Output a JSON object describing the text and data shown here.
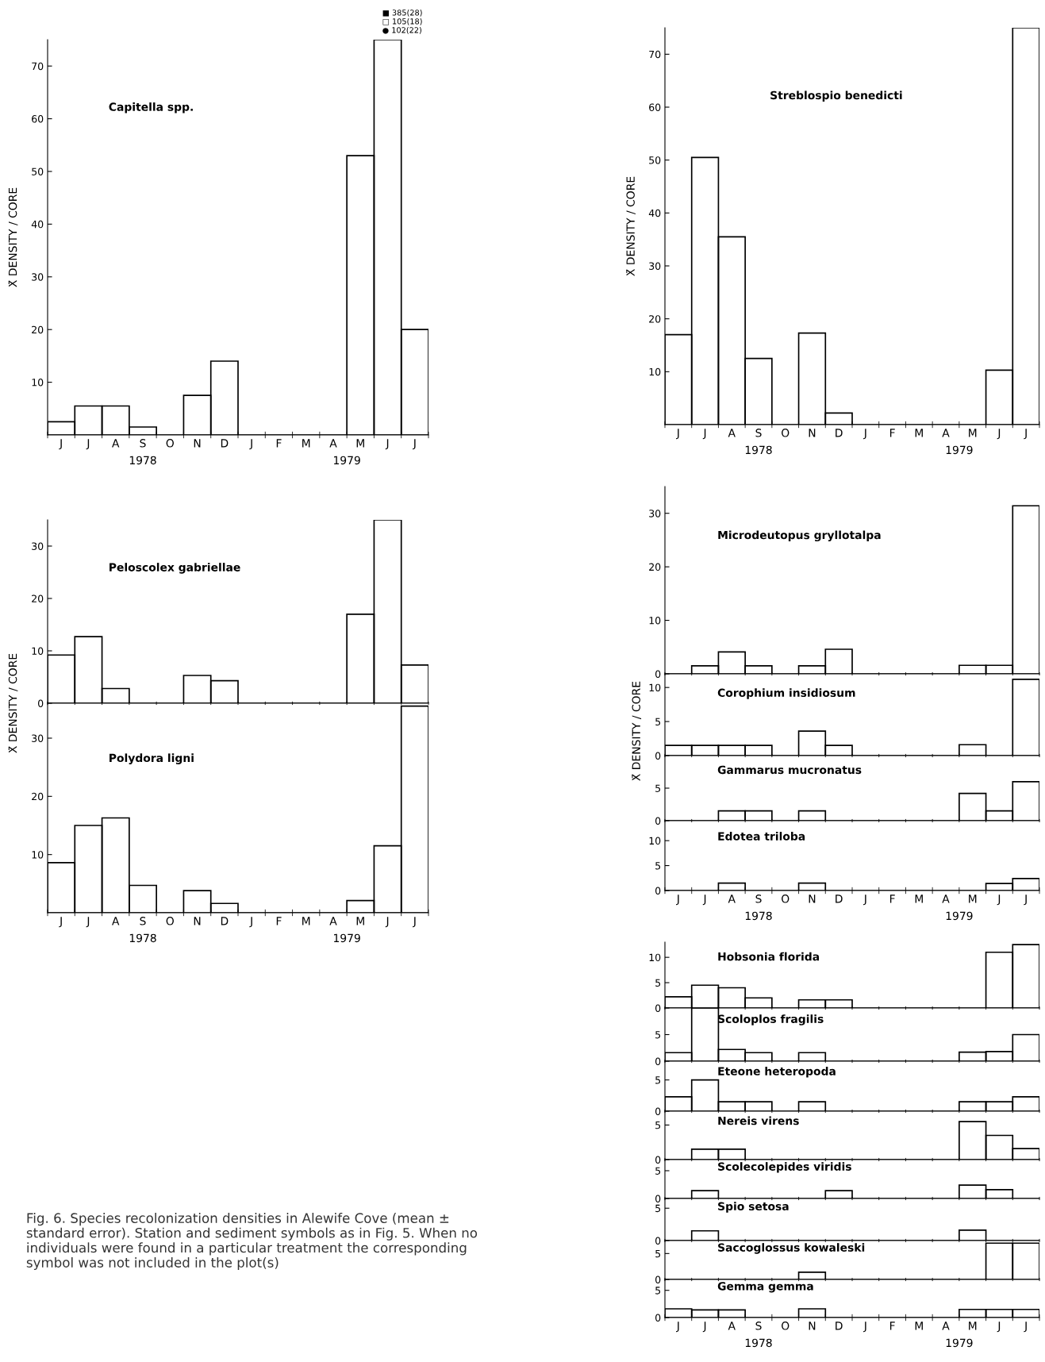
{
  "chart_data": [
    {
      "type": "bar",
      "title": "Capitella spp.",
      "ylabel": "X̄ DENSITY / CORE",
      "categories": [
        "J",
        "J",
        "A",
        "S",
        "O",
        "N",
        "D",
        "J",
        "F",
        "M",
        "A",
        "M",
        "J",
        "J"
      ],
      "values": [
        2.5,
        5.5,
        5.5,
        1.5,
        0,
        7.5,
        14,
        0,
        0,
        0,
        0,
        53,
        75,
        20
      ],
      "color": "#000000",
      "ylim": [
        0,
        75
      ],
      "yticks": [
        10,
        20,
        30,
        40,
        50,
        60,
        70
      ],
      "annotations": [
        "1978",
        "1979",
        "■ 385(28)",
        "□ 105(18)",
        "● 102(22)"
      ]
    },
    {
      "type": "bar",
      "title": "Streblospio benedicti",
      "ylabel": "X̄ DENSITY / CORE",
      "categories": [
        "J",
        "J",
        "A",
        "S",
        "O",
        "N",
        "D",
        "J",
        "F",
        "M",
        "A",
        "M",
        "J",
        "J"
      ],
      "values": [
        17,
        50.5,
        35.5,
        12.5,
        0,
        17.3,
        2.2,
        0,
        0,
        0,
        0,
        0,
        10.3,
        75
      ],
      "color": "#000000",
      "ylim": [
        0,
        75
      ],
      "yticks": [
        10,
        20,
        30,
        40,
        50,
        60,
        70
      ],
      "annotations": [
        "1978",
        "1979"
      ]
    },
    {
      "type": "bar",
      "title": "Peloscolex gabriellae",
      "categories": [
        null,
        null,
        null,
        null,
        null,
        null,
        null,
        null,
        null,
        null,
        null,
        null,
        null,
        null
      ],
      "values": [
        9.2,
        12.7,
        2.8,
        0,
        0,
        5.3,
        4.3,
        0,
        0,
        0,
        0,
        17,
        35,
        7.3
      ],
      "color": "#000000",
      "ylim": [
        0,
        35
      ],
      "yticks": [
        0,
        10,
        20,
        30
      ],
      "tick_labels": "y"
    },
    {
      "type": "bar",
      "title": "Polydora ligni",
      "ylabel": "X̄ DENSITY / CORE",
      "categories": [
        "J",
        "J",
        "A",
        "S",
        "O",
        "N",
        "D",
        "J",
        "F",
        "M",
        "A",
        "M",
        "J",
        "J"
      ],
      "values": [
        8.6,
        15,
        16.3,
        4.7,
        0,
        3.8,
        1.6,
        0,
        0,
        0,
        0,
        2.1,
        11.5,
        35.5
      ],
      "color": "#000000",
      "ylim": [
        0,
        36
      ],
      "yticks": [
        10,
        20,
        30
      ],
      "annotations": [
        "1978",
        "1979",
        "Fig. 6. Species recolonization densities in Alewife Cove (mean ± standard error). Station and sediment symbols as in Fig. 5. When no individuals were found in a particular treatment the corresponding symbol was not included in the plot(s)"
      ]
    },
    {
      "type": "bar",
      "title": "Microdeutopus gryllotalpa",
      "categories": [
        null,
        null,
        null,
        null,
        null,
        null,
        null,
        null,
        null,
        null,
        null,
        null,
        null,
        null
      ],
      "values": [
        0,
        1.5,
        4.1,
        1.5,
        0,
        1.5,
        4.6,
        0,
        0,
        0,
        0,
        1.6,
        1.6,
        31.4
      ],
      "color": "#000000",
      "ylim": [
        0,
        35
      ],
      "yticks": [
        0,
        10,
        20,
        30
      ],
      "tick_labels": "y"
    },
    {
      "type": "bar",
      "title": "Corophium insidiosum",
      "ylabel": "X̄ DENSITY / CORE",
      "categories": [
        null,
        null,
        null,
        null,
        null,
        null,
        null,
        null,
        null,
        null,
        null,
        null,
        null,
        null
      ],
      "values": [
        1.5,
        1.5,
        1.5,
        1.5,
        0,
        3.6,
        1.5,
        0,
        0,
        0,
        0,
        1.6,
        0,
        11.2
      ],
      "color": "#000000",
      "ylim": [
        0,
        12
      ],
      "yticks": [
        0,
        5,
        10
      ],
      "tick_labels": "y"
    },
    {
      "type": "bar",
      "title": "Gammarus mucronatus",
      "categories": [
        null,
        null,
        null,
        null,
        null,
        null,
        null,
        null,
        null,
        null,
        null,
        null,
        null,
        null
      ],
      "values": [
        0,
        0,
        1.5,
        1.5,
        0,
        1.5,
        0,
        0,
        0,
        0,
        0,
        4.2,
        1.5,
        6
      ],
      "color": "#000000",
      "ylim": [
        0,
        10
      ],
      "yticks": [
        0,
        5
      ],
      "tick_labels": "y"
    },
    {
      "type": "bar",
      "title": "Edotea triloba",
      "categories": [
        "J",
        "J",
        "A",
        "S",
        "O",
        "N",
        "D",
        "J",
        "F",
        "M",
        "A",
        "M",
        "J",
        "J"
      ],
      "values": [
        0,
        0,
        1.5,
        0,
        0,
        1.5,
        0,
        0,
        0,
        0,
        0,
        0,
        1.4,
        2.4
      ],
      "color": "#000000",
      "ylim": [
        0,
        14
      ],
      "yticks": [
        0,
        5,
        10
      ],
      "annotations": [
        "1978",
        "1979"
      ]
    },
    {
      "type": "bar",
      "title": "Hobsonia florida",
      "categories": [
        null,
        null,
        null,
        null,
        null,
        null,
        null,
        null,
        null,
        null,
        null,
        null,
        null,
        null
      ],
      "values": [
        2.2,
        4.5,
        4,
        2,
        0,
        1.6,
        1.6,
        0,
        0,
        0,
        0,
        0,
        11,
        12.5
      ],
      "color": "#000000",
      "ylim": [
        0,
        13
      ],
      "yticks": [
        0,
        5,
        10
      ],
      "tick_labels": "y"
    },
    {
      "type": "bar",
      "title": "Scoloplos fragilis",
      "categories": [
        null,
        null,
        null,
        null,
        null,
        null,
        null,
        null,
        null,
        null,
        null,
        null,
        null,
        null
      ],
      "values": [
        1.6,
        10,
        2.2,
        1.6,
        0,
        1.6,
        0,
        0,
        0,
        0,
        0,
        1.7,
        1.8,
        5
      ],
      "color": "#000000",
      "ylim": [
        0,
        10
      ],
      "yticks": [
        0,
        5
      ],
      "tick_labels": "y"
    },
    {
      "type": "bar",
      "title": "Eteone heteropoda",
      "categories": [
        null,
        null,
        null,
        null,
        null,
        null,
        null,
        null,
        null,
        null,
        null,
        null,
        null,
        null
      ],
      "values": [
        2.3,
        5,
        1.5,
        1.5,
        0,
        1.5,
        0,
        0,
        0,
        0,
        0,
        1.5,
        1.5,
        2.3
      ],
      "color": "#000000",
      "ylim": [
        0,
        8
      ],
      "yticks": [
        0,
        5
      ],
      "tick_labels": "y"
    },
    {
      "type": "bar",
      "title": "Nereis virens",
      "categories": [
        null,
        null,
        null,
        null,
        null,
        null,
        null,
        null,
        null,
        null,
        null,
        null,
        null,
        null
      ],
      "values": [
        0,
        1.5,
        1.5,
        0,
        0,
        0,
        0,
        0,
        0,
        0,
        0,
        5.5,
        3.5,
        1.6
      ],
      "color": "#000000",
      "ylim": [
        0,
        7
      ],
      "yticks": [
        0,
        5
      ],
      "tick_labels": "y"
    },
    {
      "type": "bar",
      "title": "Scolecolepides viridis",
      "categories": [
        null,
        null,
        null,
        null,
        null,
        null,
        null,
        null,
        null,
        null,
        null,
        null,
        null,
        null
      ],
      "values": [
        0,
        1.4,
        0,
        0,
        0,
        0,
        1.4,
        0,
        0,
        0,
        0,
        2.4,
        1.6,
        0
      ],
      "color": "#000000",
      "ylim": [
        0,
        7
      ],
      "yticks": [
        0,
        5
      ],
      "tick_labels": "y"
    },
    {
      "type": "bar",
      "title": "Spio setosa",
      "categories": [
        null,
        null,
        null,
        null,
        null,
        null,
        null,
        null,
        null,
        null,
        null,
        null,
        null,
        null
      ],
      "values": [
        0,
        1.5,
        0,
        0,
        0,
        0,
        0,
        0,
        0,
        0,
        0,
        1.6,
        0,
        0
      ],
      "color": "#000000",
      "ylim": [
        0,
        6.5
      ],
      "yticks": [
        0,
        5
      ],
      "tick_labels": "y"
    },
    {
      "type": "bar",
      "title": "Saccoglossus kowaleski",
      "categories": [
        null,
        null,
        null,
        null,
        null,
        null,
        null,
        null,
        null,
        null,
        null,
        null,
        null,
        null
      ],
      "values": [
        0,
        0,
        0,
        0,
        0,
        1.4,
        0,
        0,
        0,
        0,
        0,
        0,
        7,
        7
      ],
      "color": "#000000",
      "ylim": [
        0,
        7.5
      ],
      "yticks": [
        0,
        5
      ],
      "tick_labels": "y"
    },
    {
      "type": "bar",
      "title": "Gemma gemma",
      "categories": [
        "J",
        "J",
        "A",
        "S",
        "O",
        "N",
        "D",
        "J",
        "F",
        "M",
        "A",
        "M",
        "J",
        "J"
      ],
      "values": [
        1.6,
        1.4,
        1.4,
        0,
        0,
        1.6,
        0,
        0,
        0,
        0,
        0,
        1.5,
        1.5,
        1.5
      ],
      "color": "#000000",
      "ylim": [
        0,
        7
      ],
      "yticks": [
        0,
        5
      ],
      "annotations": [
        "1978",
        "1979"
      ]
    }
  ]
}
